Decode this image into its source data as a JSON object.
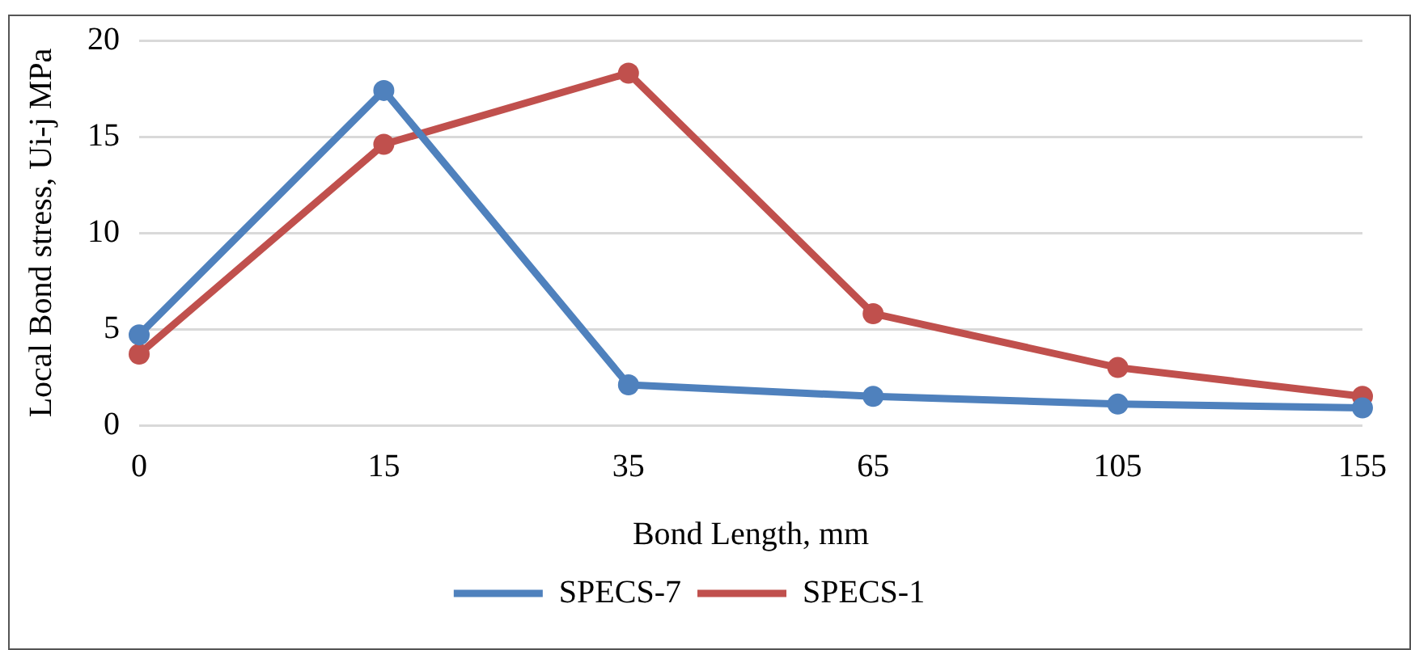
{
  "chart_data": {
    "type": "line",
    "xlabel": "Bond Length, mm",
    "ylabel": "Local Bond stress, Ui-j MPa",
    "categories": [
      "0",
      "15",
      "35",
      "65",
      "105",
      "155"
    ],
    "series": [
      {
        "name": "SPECS-7",
        "color": "#4f81bd",
        "values": [
          4.7,
          17.4,
          2.1,
          1.5,
          1.1,
          0.9
        ]
      },
      {
        "name": "SPECS-1",
        "color": "#c0504d",
        "values": [
          3.7,
          14.6,
          18.3,
          5.8,
          3.0,
          1.5
        ]
      }
    ],
    "ylim": [
      0,
      20
    ],
    "yticks": [
      0,
      5,
      10,
      15,
      20
    ],
    "grid": "y",
    "legend": "bottom",
    "marker": "circle",
    "line_style": "solid"
  }
}
